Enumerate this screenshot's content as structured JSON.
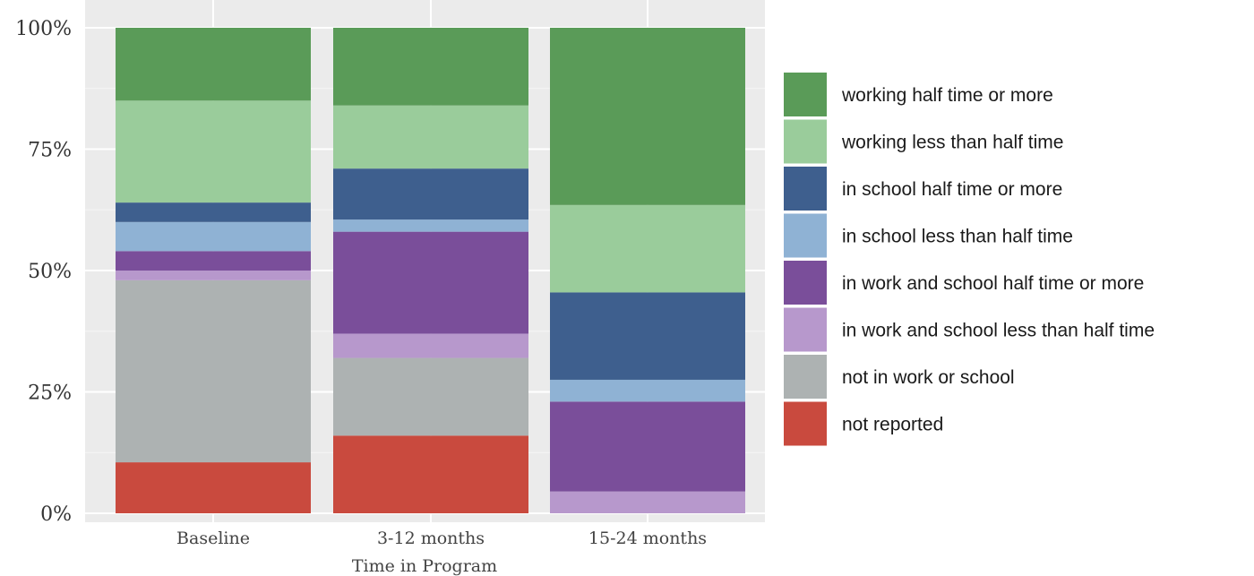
{
  "chart_data": {
    "type": "bar",
    "stacked": true,
    "xlabel": "Time in Program",
    "ylabel": "",
    "ylim": [
      0,
      100
    ],
    "y_ticks": [
      "0%",
      "25%",
      "50%",
      "75%",
      "100%"
    ],
    "y_tick_values": [
      0,
      25,
      50,
      75,
      100
    ],
    "categories": [
      "Baseline",
      "3-12 months",
      "15-24 months"
    ],
    "grid": true,
    "legend_position": "right",
    "series": [
      {
        "name": "not reported",
        "color": "#c94a3e",
        "values": [
          10.5,
          16,
          0
        ]
      },
      {
        "name": "not in work or school",
        "color": "#adb2b2",
        "values": [
          37.5,
          16,
          0
        ]
      },
      {
        "name": "in work and school less than half time",
        "color": "#b798cc",
        "values": [
          2,
          5,
          4.5
        ]
      },
      {
        "name": "in work and school half time or more",
        "color": "#7a4e9a",
        "values": [
          4,
          21,
          18.5
        ]
      },
      {
        "name": "in school less than half time",
        "color": "#8fb2d4",
        "values": [
          6,
          2.5,
          4.5
        ]
      },
      {
        "name": "in school half time or more",
        "color": "#3e5f8e",
        "values": [
          4,
          10.5,
          18
        ]
      },
      {
        "name": "working less than half time",
        "color": "#9acc9b",
        "values": [
          21,
          13,
          18
        ]
      },
      {
        "name": "working half time or more",
        "color": "#5a9b58",
        "values": [
          15,
          16,
          36.5
        ]
      }
    ]
  }
}
